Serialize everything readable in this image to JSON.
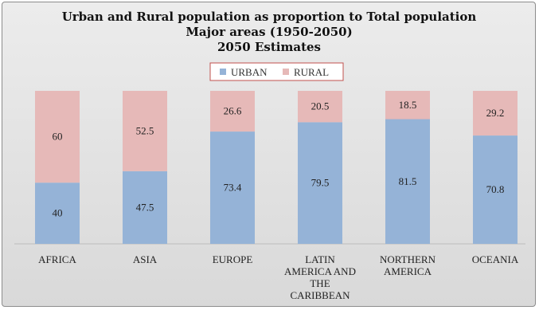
{
  "chart_data": {
    "type": "bar",
    "stacked": true,
    "title": [
      "Urban and Rural population as proportion to Total population",
      "Major areas (1950-2050)",
      "2050 Estimates"
    ],
    "categories": [
      [
        "AFRICA"
      ],
      [
        "ASIA"
      ],
      [
        "EUROPE"
      ],
      [
        "LATIN",
        "AMERICA AND",
        "THE",
        "CARIBBEAN"
      ],
      [
        "NORTHERN",
        "AMERICA"
      ],
      [
        "OCEANIA"
      ]
    ],
    "series": [
      {
        "name": "URBAN",
        "values": [
          40,
          47.5,
          73.4,
          79.5,
          81.5,
          70.8
        ],
        "color": "#95b3d7"
      },
      {
        "name": "RURAL",
        "values": [
          60,
          52.5,
          26.6,
          20.5,
          18.5,
          29.2
        ],
        "color": "#e6b9b8"
      }
    ],
    "value_labels": {
      "URBAN": [
        "40",
        "47.5",
        "73.4",
        "79.5",
        "81.5",
        "70.8"
      ],
      "RURAL": [
        "60",
        "52.5",
        "26.6",
        "20.5",
        "18.5",
        "29.2"
      ]
    },
    "ylim": [
      0,
      100
    ],
    "grid": false,
    "legend": "top-center",
    "legend_border_color": "#c0504d"
  }
}
